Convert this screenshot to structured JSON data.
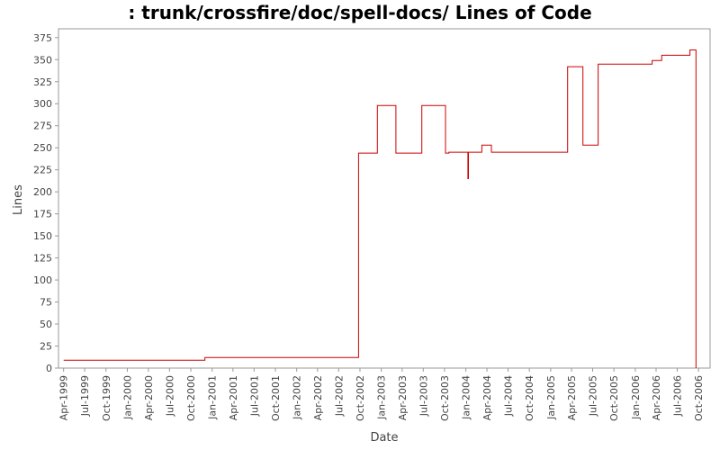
{
  "chart_data": {
    "type": "line",
    "title": ": trunk/crossfire/doc/spell-docs/ Lines of Code",
    "xlabel": "Date",
    "ylabel": "Lines",
    "ylim": [
      0,
      385
    ],
    "xlim": [
      "1999-03-10",
      "2006-11-20"
    ],
    "y_ticks": [
      0,
      25,
      50,
      75,
      100,
      125,
      150,
      175,
      200,
      225,
      250,
      275,
      300,
      325,
      350,
      375
    ],
    "x_ticks": [
      "Apr-1999",
      "Jul-1999",
      "Oct-1999",
      "Jan-2000",
      "Apr-2000",
      "Jul-2000",
      "Oct-2000",
      "Jan-2001",
      "Apr-2001",
      "Jul-2001",
      "Oct-2001",
      "Jan-2002",
      "Apr-2002",
      "Jul-2002",
      "Oct-2002",
      "Jan-2003",
      "Apr-2003",
      "Jul-2003",
      "Oct-2003",
      "Jan-2004",
      "Apr-2004",
      "Jul-2004",
      "Oct-2004",
      "Jan-2005",
      "Apr-2005",
      "Jul-2005",
      "Oct-2005",
      "Jan-2006",
      "Apr-2006",
      "Jul-2006",
      "Oct-2006"
    ],
    "grid": false,
    "line_color": "#cc0000",
    "step": true,
    "series": [
      {
        "points": [
          [
            "1999-04-01",
            9
          ],
          [
            "2000-12-01",
            12
          ],
          [
            "2002-09-25",
            244
          ],
          [
            "2002-12-15",
            298
          ],
          [
            "2003-03-05",
            244
          ],
          [
            "2003-06-25",
            298
          ],
          [
            "2003-10-05",
            244
          ],
          [
            "2003-10-20",
            245
          ],
          [
            "2004-01-10",
            215
          ],
          [
            "2004-01-12",
            245
          ],
          [
            "2004-03-10",
            253
          ],
          [
            "2004-04-20",
            245
          ],
          [
            "2005-03-15",
            342
          ],
          [
            "2005-05-20",
            253
          ],
          [
            "2005-07-25",
            345
          ],
          [
            "2006-03-15",
            349
          ],
          [
            "2006-04-25",
            355
          ],
          [
            "2006-08-25",
            361
          ],
          [
            "2006-09-20",
            0
          ]
        ]
      }
    ]
  }
}
